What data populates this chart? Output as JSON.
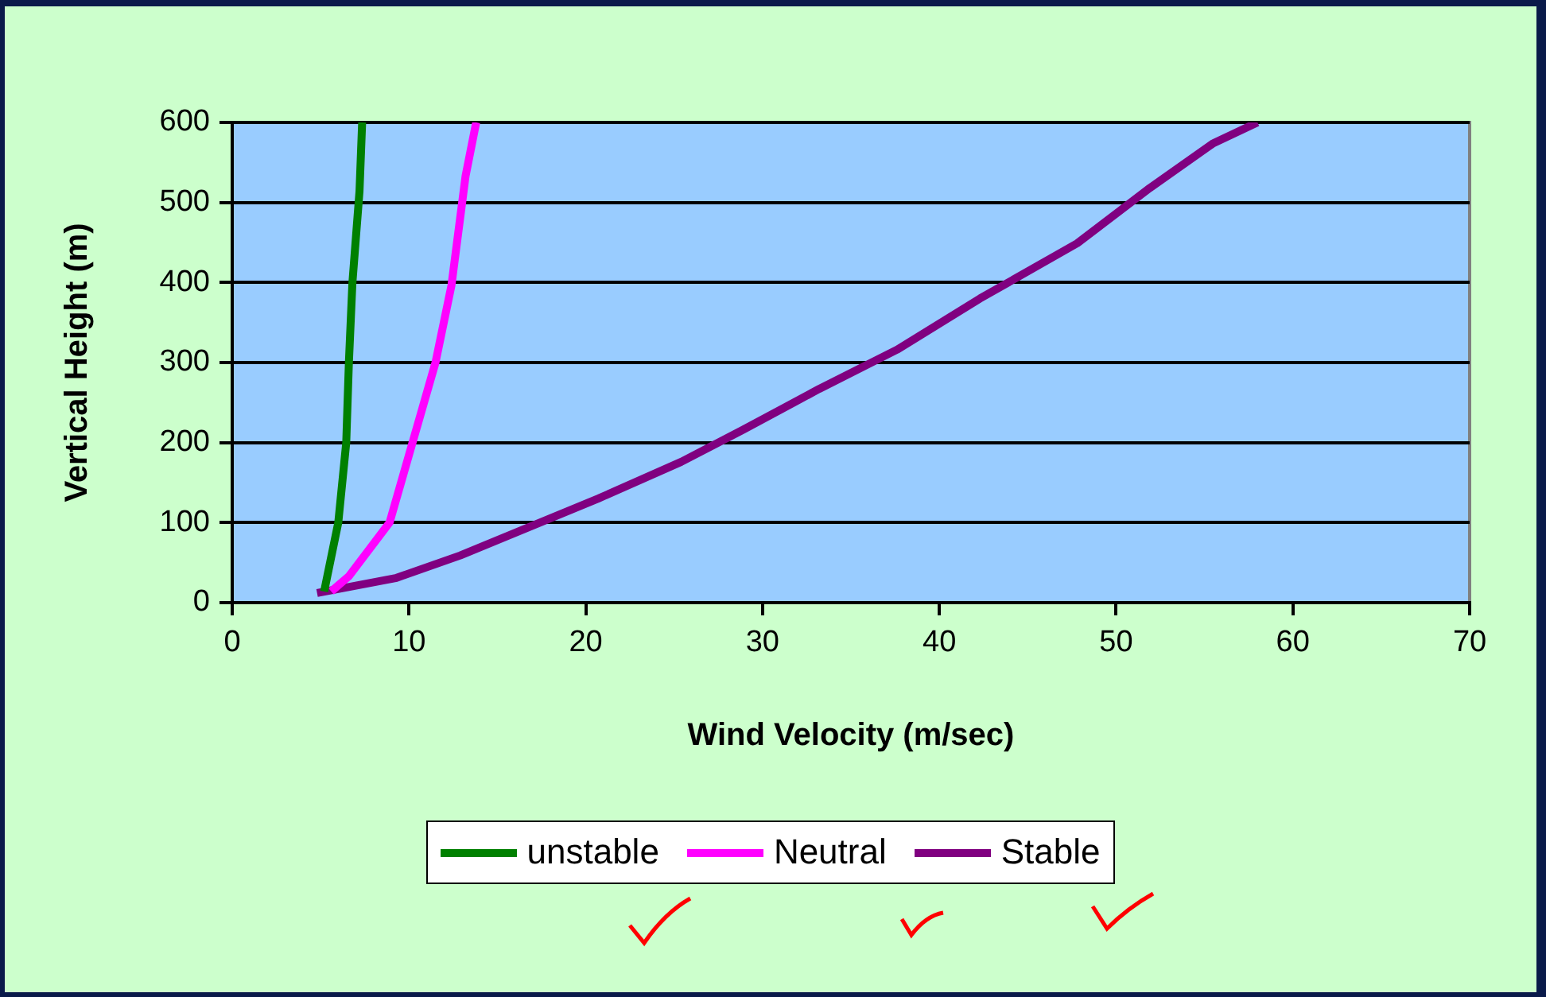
{
  "chart_data": {
    "type": "line",
    "xlabel": "Wind Velocity (m/sec)",
    "ylabel": "Vertical Height (m)",
    "xlim": [
      0,
      70
    ],
    "xticks": [
      0,
      10,
      20,
      30,
      40,
      50,
      60,
      70
    ],
    "ylim": [
      0,
      600
    ],
    "yticks": [
      0,
      100,
      200,
      300,
      400,
      500,
      600
    ],
    "grid": "y",
    "legend": "bottom",
    "marker": "none",
    "line_style": "solid",
    "series": [
      {
        "name": "unstable",
        "color": "#008000",
        "x": [
          5.2,
          6.0,
          6.45,
          6.6,
          6.8,
          7.2,
          7.35
        ],
        "values": [
          14,
          100,
          200,
          300,
          400,
          514,
          600
        ]
      },
      {
        "name": "Neutral",
        "color": "#ff00ff",
        "x": [
          5.6,
          6.6,
          8.9,
          10.2,
          11.5,
          12.4,
          13.2,
          13.8
        ],
        "values": [
          14,
          33,
          100,
          200,
          300,
          396,
          533,
          600
        ]
      },
      {
        "name": "Stable",
        "color": "#800080",
        "x": [
          4.8,
          9.3,
          12.9,
          17.4,
          20.7,
          25.4,
          28.9,
          33.2,
          37.6,
          42.3,
          47.8,
          51.9,
          55.5,
          58
        ],
        "values": [
          12,
          31,
          59,
          100,
          130,
          176,
          216,
          267,
          316,
          380,
          449,
          518,
          574,
          600
        ]
      }
    ]
  }
}
